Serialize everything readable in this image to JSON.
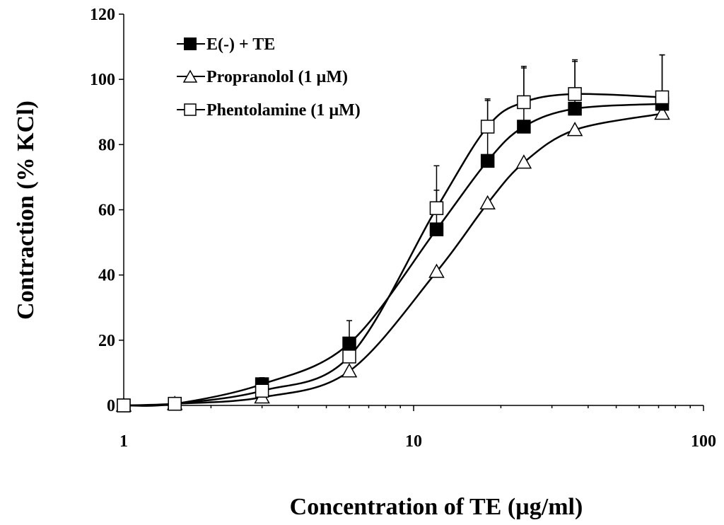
{
  "chart_data": {
    "type": "line",
    "title": "",
    "xlabel": "Concentration of TE (µg/ml)",
    "ylabel": "Contraction (% KCl)",
    "xscale": "log",
    "xlim": [
      1,
      100
    ],
    "ylim": [
      0,
      120
    ],
    "xticks": [
      1,
      10,
      100
    ],
    "xtick_labels": [
      "1",
      "10",
      "100"
    ],
    "yticks": [
      0,
      20,
      40,
      60,
      80,
      100,
      120
    ],
    "ytick_labels": [
      "0",
      "20",
      "40",
      "60",
      "80",
      "100",
      "120"
    ],
    "grid": false,
    "legend_position": "top-left",
    "series": [
      {
        "name": "E(-) + TE",
        "marker": "filled-square",
        "x": [
          1,
          1.5,
          3,
          6,
          12,
          18,
          24,
          36,
          72
        ],
        "y": [
          0,
          0.5,
          6.5,
          19,
          54,
          75,
          85.5,
          91,
          92.5
        ],
        "error": [
          0,
          0,
          2,
          7,
          12,
          19,
          18,
          15,
          15
        ]
      },
      {
        "name": "Propranolol (1 µM)",
        "marker": "open-triangle",
        "x": [
          1,
          1.5,
          3,
          6,
          12,
          18,
          24,
          36,
          72
        ],
        "y": [
          0,
          0.5,
          2.5,
          10.5,
          41,
          62,
          74.5,
          84.5,
          89.5
        ],
        "error": [
          0,
          0,
          0,
          0,
          0,
          0,
          0,
          0,
          0
        ]
      },
      {
        "name": "Phentolamine (1 µM)",
        "marker": "open-square",
        "x": [
          1,
          1.5,
          3,
          6,
          12,
          18,
          24,
          36,
          72
        ],
        "y": [
          0,
          0.5,
          4.5,
          15,
          60.5,
          85.5,
          93,
          95.5,
          94.5
        ],
        "error": [
          0,
          0,
          0,
          0,
          13,
          8,
          11,
          10,
          13
        ]
      }
    ]
  }
}
